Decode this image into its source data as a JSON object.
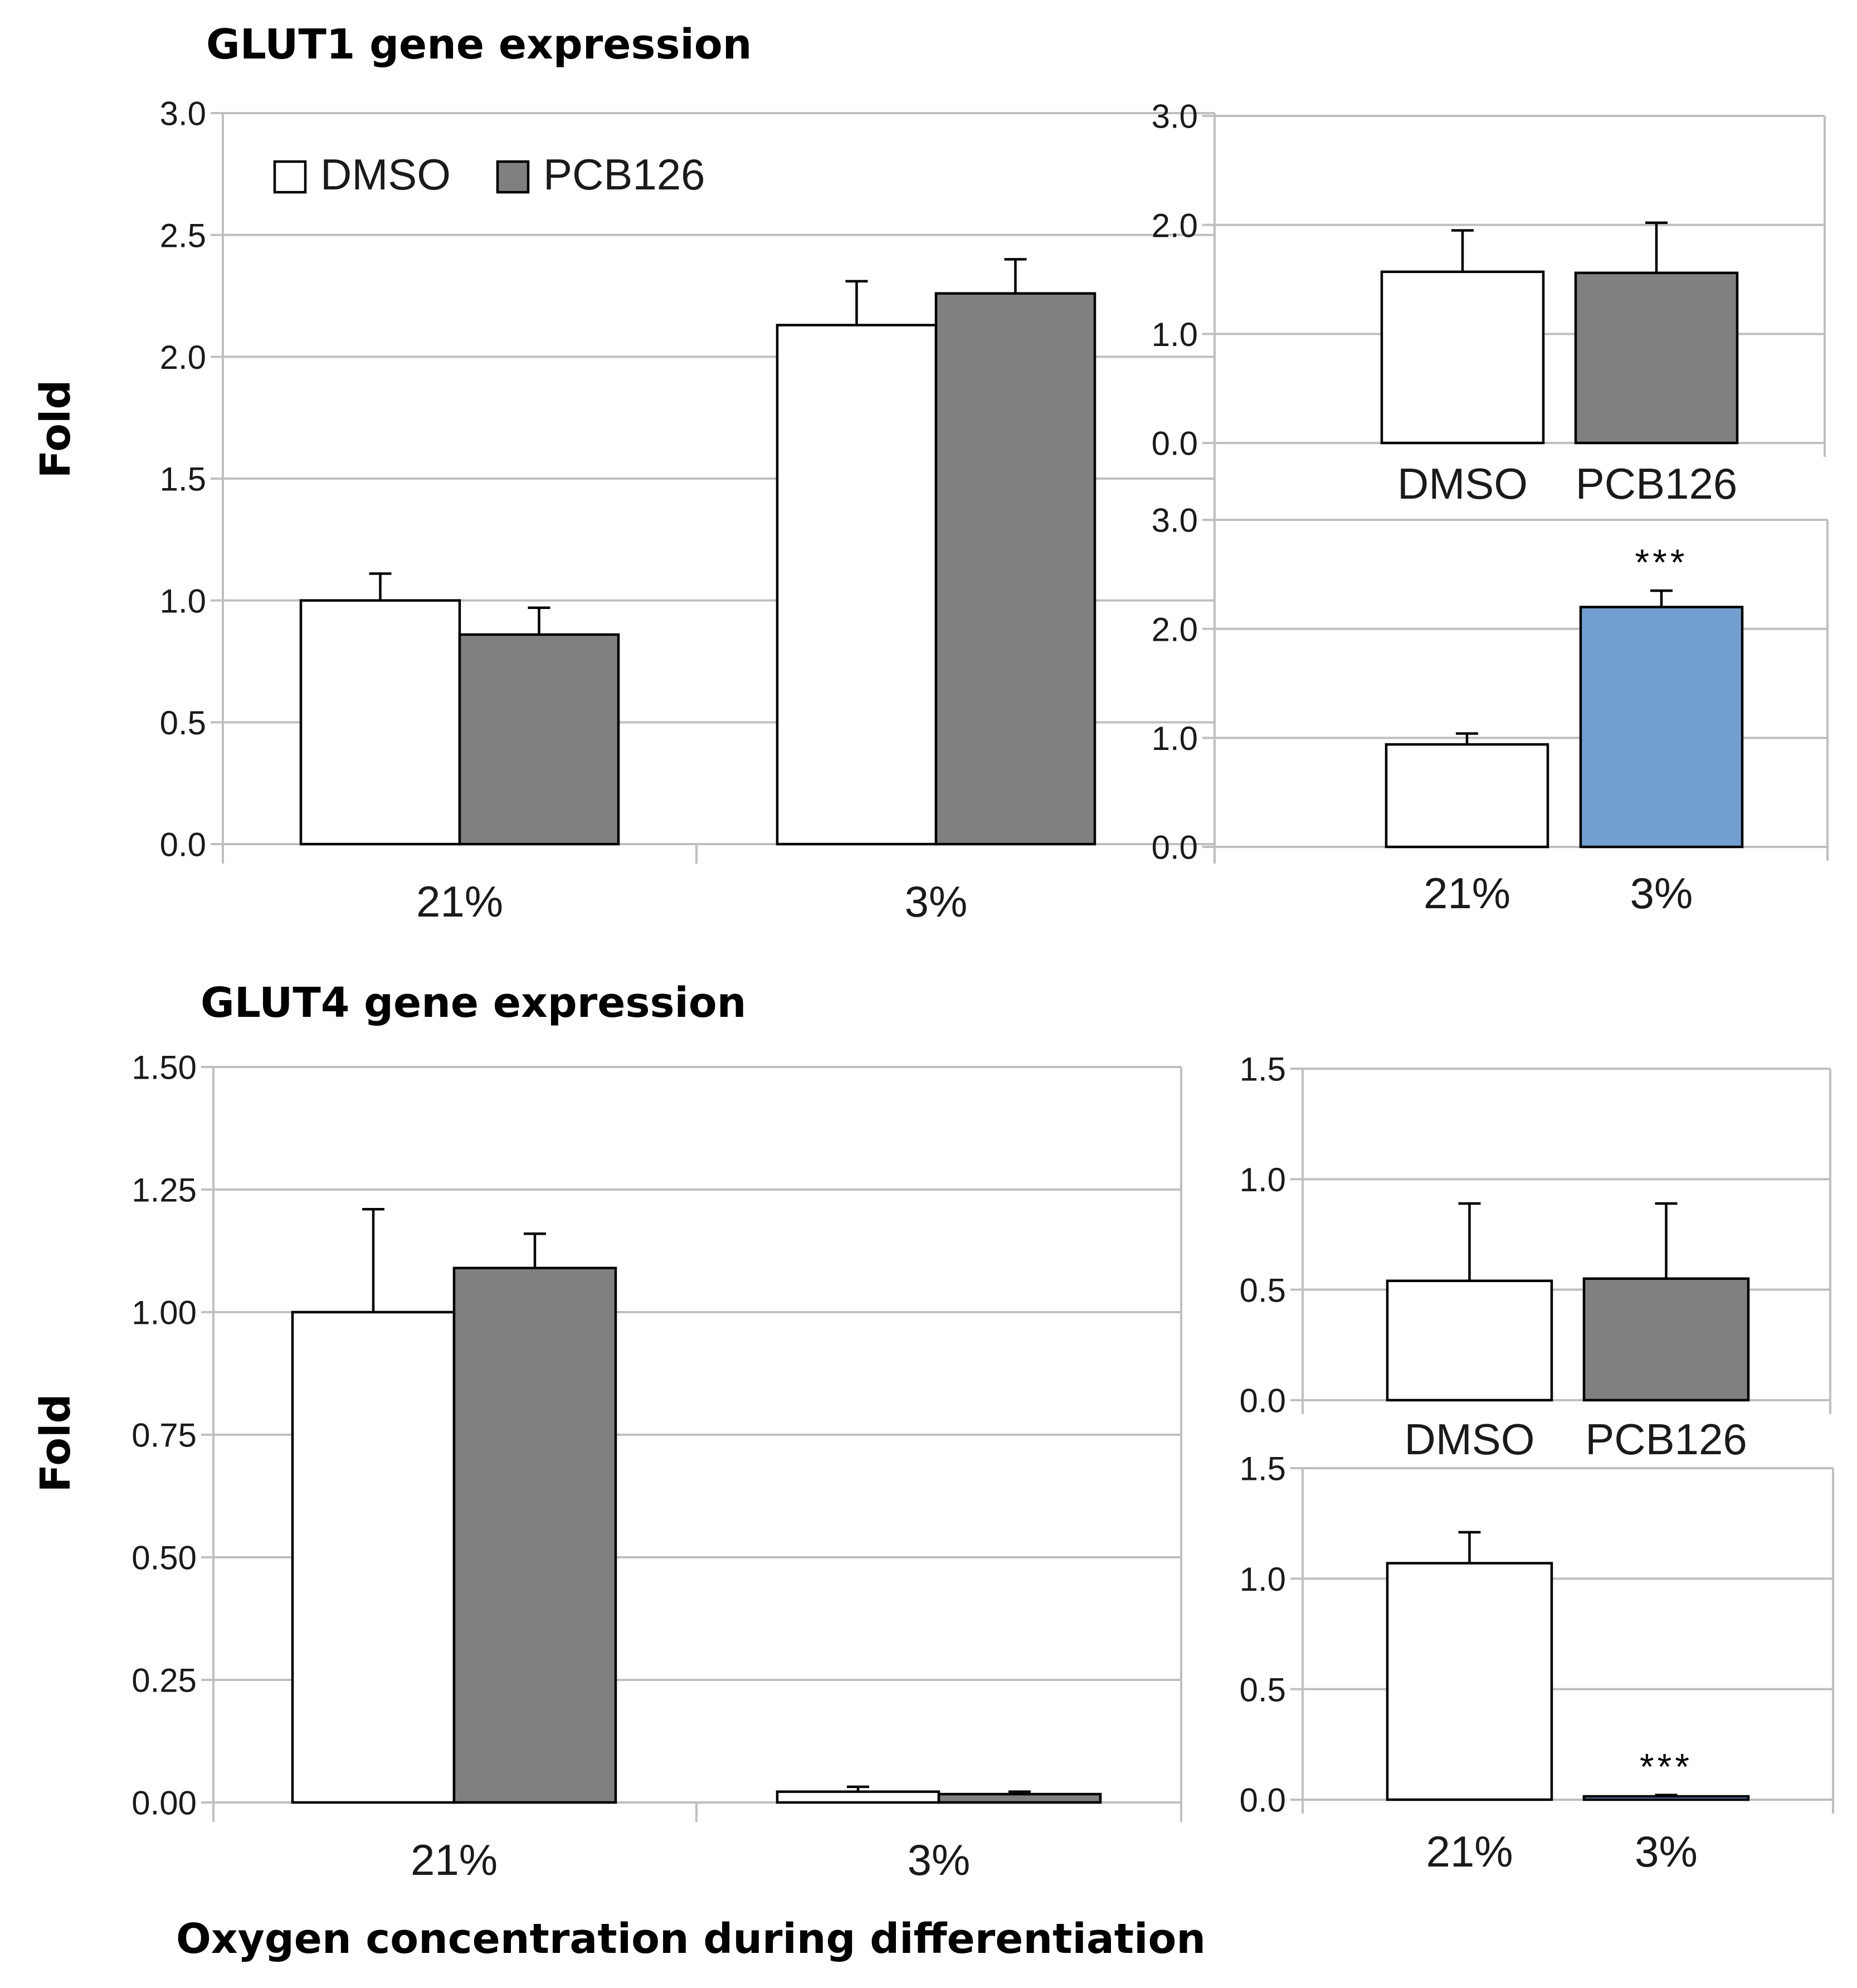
{
  "colors": {
    "dmso": "#ffffff",
    "pcb126": "#808080",
    "highlight": "#729fcf",
    "grid": "#bfbfbf",
    "bar_edge": "#000000"
  },
  "figure": {
    "glut1_title": "GLUT1 gene expression",
    "glut4_title": "GLUT4 gene expression",
    "ylabel": "Fold",
    "xlabel": "Oxygen concentration during differentiation",
    "legend": [
      "DMSO",
      "PCB126"
    ]
  },
  "chart_data": [
    {
      "id": "glut1_main",
      "type": "bar",
      "title": "GLUT1 gene expression",
      "ylabel": "Fold",
      "categories": [
        "21%",
        "3%"
      ],
      "yticks": [
        "0.0",
        "0.5",
        "1.0",
        "1.5",
        "2.0",
        "2.5",
        "3.0"
      ],
      "ylim": [
        0,
        3
      ],
      "series": [
        {
          "name": "DMSO",
          "values": [
            1.0,
            2.13
          ],
          "errors": [
            0.11,
            0.18
          ],
          "colors": [
            "#ffffff",
            "#ffffff"
          ]
        },
        {
          "name": "PCB126",
          "values": [
            0.86,
            2.26
          ],
          "errors": [
            0.11,
            0.14
          ],
          "colors": [
            "#808080",
            "#808080"
          ]
        }
      ],
      "legend": [
        "DMSO",
        "PCB126"
      ],
      "legend_position": "top-left"
    },
    {
      "id": "glut1_treatment",
      "type": "bar",
      "categories": [
        "DMSO",
        "PCB126"
      ],
      "yticks": [
        "0.0",
        "1.0",
        "2.0",
        "3.0"
      ],
      "ylim": [
        0,
        3
      ],
      "series": [
        {
          "name": "Fold",
          "values": [
            1.57,
            1.56
          ],
          "errors": [
            0.38,
            0.46
          ],
          "colors": [
            "#ffffff",
            "#808080"
          ],
          "stars": [
            "",
            ""
          ]
        }
      ]
    },
    {
      "id": "glut1_oxygen",
      "type": "bar",
      "categories": [
        "21%",
        "3%"
      ],
      "yticks": [
        "0.0",
        "1.0",
        "2.0",
        "3.0"
      ],
      "ylim": [
        0,
        3
      ],
      "series": [
        {
          "name": "Fold",
          "values": [
            0.94,
            2.2
          ],
          "errors": [
            0.1,
            0.15
          ],
          "colors": [
            "#ffffff",
            "#729fcf"
          ],
          "stars": [
            "",
            "***"
          ]
        }
      ]
    },
    {
      "id": "glut4_main",
      "type": "bar",
      "title": "GLUT4 gene expression",
      "ylabel": "Fold",
      "xlabel": "Oxygen concentration during differentiation",
      "categories": [
        "21%",
        "3%"
      ],
      "yticks": [
        "0.00",
        "0.25",
        "0.50",
        "0.75",
        "1.00",
        "1.25",
        "1.50"
      ],
      "ylim": [
        0,
        1.5
      ],
      "series": [
        {
          "name": "DMSO",
          "values": [
            1.0,
            0.022
          ],
          "errors": [
            0.21,
            0.01
          ],
          "colors": [
            "#ffffff",
            "#ffffff"
          ]
        },
        {
          "name": "PCB126",
          "values": [
            1.09,
            0.017
          ],
          "errors": [
            0.07,
            0.005
          ],
          "colors": [
            "#808080",
            "#808080"
          ]
        }
      ]
    },
    {
      "id": "glut4_treatment",
      "type": "bar",
      "categories": [
        "DMSO",
        "PCB126"
      ],
      "yticks": [
        "0.0",
        "0.5",
        "1.0",
        "1.5"
      ],
      "ylim": [
        0,
        1.5
      ],
      "series": [
        {
          "name": "Fold",
          "values": [
            0.54,
            0.55
          ],
          "errors": [
            0.35,
            0.34
          ],
          "colors": [
            "#ffffff",
            "#808080"
          ],
          "stars": [
            "",
            ""
          ]
        }
      ]
    },
    {
      "id": "glut4_oxygen",
      "type": "bar",
      "categories": [
        "21%",
        "3%"
      ],
      "yticks": [
        "0.0",
        "0.5",
        "1.0",
        "1.5"
      ],
      "ylim": [
        0,
        1.5
      ],
      "series": [
        {
          "name": "Fold",
          "values": [
            1.07,
            0.015
          ],
          "errors": [
            0.14,
            0.006
          ],
          "colors": [
            "#ffffff",
            "#729fcf"
          ],
          "stars": [
            "",
            "***"
          ]
        }
      ]
    }
  ]
}
